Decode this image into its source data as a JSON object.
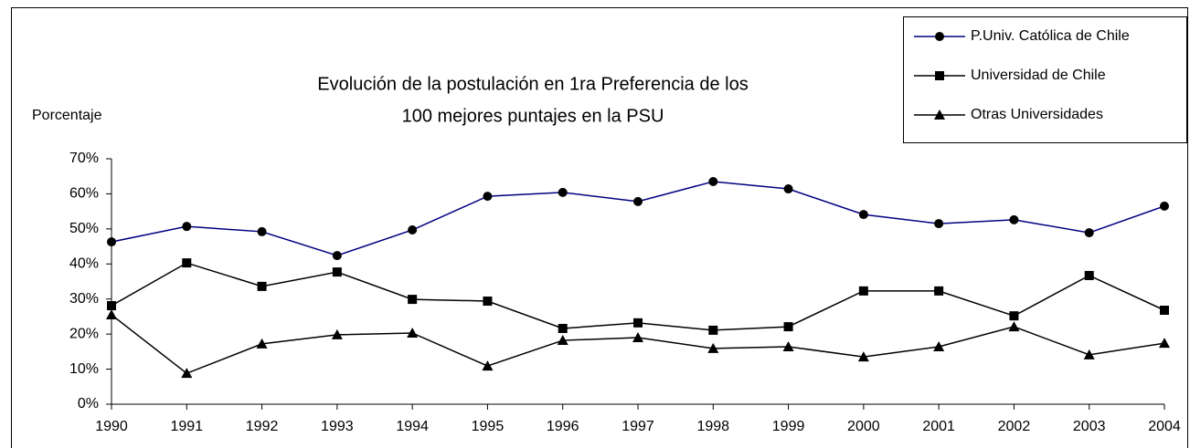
{
  "chart_data": {
    "type": "line",
    "title": [
      "Evolución de la postulación en 1ra Preferencia de los",
      "100 mejores puntajes en la PSU"
    ],
    "y_label": "Porcentaje",
    "categories": [
      "1990",
      "1991",
      "1992",
      "1993",
      "1994",
      "1995",
      "1996",
      "1997",
      "1998",
      "1999",
      "2000",
      "2001",
      "2002",
      "2003",
      "2004"
    ],
    "series": [
      {
        "name": "P.Univ. Católica de Chile",
        "color": "#000080",
        "marker": "circle",
        "values": [
          46.3,
          50.7,
          49.2,
          42.4,
          49.7,
          59.3,
          60.4,
          57.8,
          63.5,
          61.4,
          54.1,
          51.5,
          52.6,
          48.9,
          56.5
        ]
      },
      {
        "name": "Universidad de Chile",
        "color": "#000000",
        "marker": "square",
        "values": [
          28.1,
          40.3,
          33.6,
          37.7,
          29.9,
          29.4,
          21.6,
          23.2,
          21.1,
          22.1,
          32.3,
          32.3,
          25.2,
          36.7,
          26.8
        ]
      },
      {
        "name": "Otras Universidades",
        "color": "#000000",
        "marker": "triangle",
        "values": [
          25.5,
          8.8,
          17.2,
          19.8,
          20.3,
          10.9,
          18.2,
          19.0,
          15.9,
          16.4,
          13.5,
          16.4,
          22.1,
          14.1,
          17.4
        ]
      }
    ],
    "ylim": [
      0,
      70
    ],
    "yticks": [
      {
        "value": 0,
        "label": "0%"
      },
      {
        "value": 10,
        "label": "10%"
      },
      {
        "value": 20,
        "label": "20%"
      },
      {
        "value": 30,
        "label": "30%"
      },
      {
        "value": 40,
        "label": "40%"
      },
      {
        "value": 50,
        "label": "50%"
      },
      {
        "value": 60,
        "label": "60%"
      },
      {
        "value": 70,
        "label": "70%"
      }
    ],
    "grid": false,
    "legend": "top-right"
  }
}
